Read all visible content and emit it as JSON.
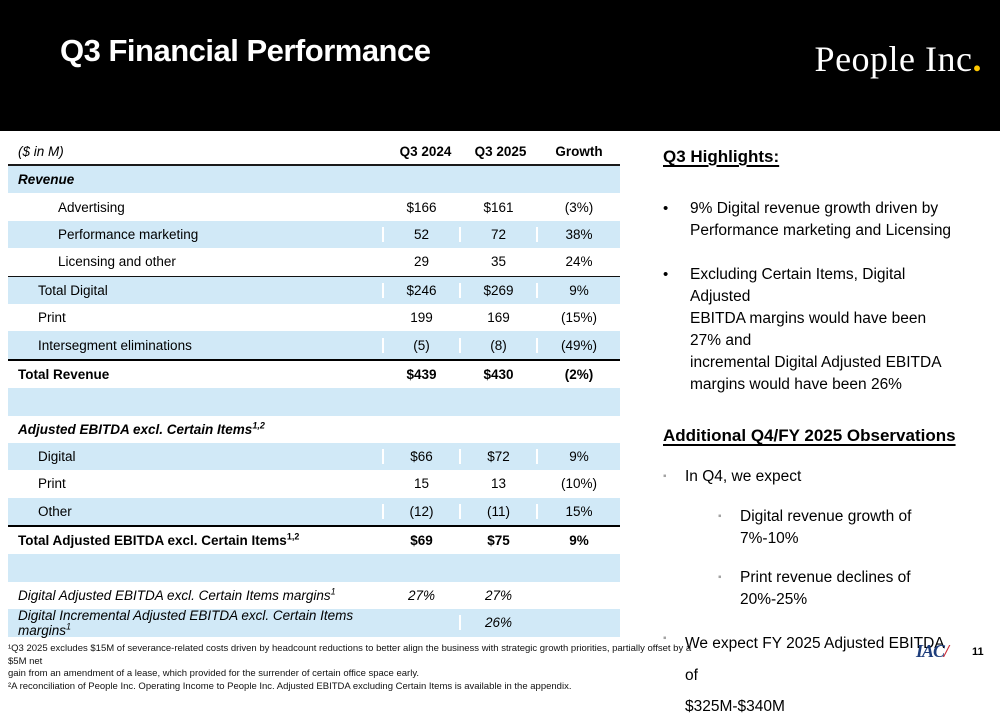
{
  "header": {
    "title": "Q3 Financial Performance",
    "logo_text": "People Inc",
    "logo_dot": "."
  },
  "icons": {
    "round_bullet": "•",
    "square_bullet": "▪"
  },
  "colors": {
    "band_black": "#000000",
    "stripe_blue": "#d1e9f7",
    "logo_dot_yellow": "#ffc800",
    "iac_navy": "#1e3d7b",
    "iac_red": "#cc2a36"
  },
  "table": {
    "columns": {
      "label": "($ in M)",
      "c1": "Q3 2024",
      "c2": "Q3 2025",
      "c3": "Growth"
    },
    "rows": [
      {
        "label": "Revenue"
      },
      {
        "label": "Advertising",
        "v1": "$166",
        "v2": "$161",
        "g": "(3%)"
      },
      {
        "label": "Performance marketing",
        "v1": "52",
        "v2": "72",
        "g": "38%"
      },
      {
        "label": "Licensing and other",
        "v1": "29",
        "v2": "35",
        "g": "24%"
      },
      {
        "label": "Total Digital",
        "v1": "$246",
        "v2": "$269",
        "g": "9%"
      },
      {
        "label": "Print",
        "v1": "199",
        "v2": "169",
        "g": "(15%)"
      },
      {
        "label": "Intersegment eliminations",
        "v1": "(5)",
        "v2": "(8)",
        "g": "(49%)"
      },
      {
        "label": "Total Revenue",
        "v1": "$439",
        "v2": "$430",
        "g": "(2%)"
      },
      {
        "label": ""
      },
      {
        "label": "Adjusted EBITDA excl. Certain Items",
        "sup": "1,2"
      },
      {
        "label": "Digital",
        "v1": "$66",
        "v2": "$72",
        "g": "9%"
      },
      {
        "label": "Print",
        "v1": "15",
        "v2": "13",
        "g": "(10%)"
      },
      {
        "label": "Other",
        "v1": "(12)",
        "v2": "(11)",
        "g": "15%"
      },
      {
        "label": "Total Adjusted EBITDA excl. Certain Items",
        "sup": "1,2",
        "v1": "$69",
        "v2": "$75",
        "g": "9%"
      },
      {
        "label": ""
      },
      {
        "label": "Digital Adjusted EBITDA excl. Certain Items margins",
        "sup": "1",
        "v1": "27%",
        "v2": "27%"
      },
      {
        "label": "Digital Incremental Adjusted EBITDA excl. Certain Items margins",
        "sup": "1",
        "v2": "26%"
      }
    ]
  },
  "highlights": {
    "title": "Q3 Highlights:",
    "bullets": [
      "9% Digital revenue growth driven by\nPerformance marketing and Licensing",
      "Excluding Certain Items, Digital Adjusted\nEBITDA margins would have been 27% and\nincremental Digital Adjusted EBITDA\nmargins would have been 26%"
    ]
  },
  "observations": {
    "title": "Additional Q4/FY 2025 Observations",
    "items": [
      {
        "text": "In Q4, we expect"
      },
      {
        "text": "Digital revenue growth of 7%-10%"
      },
      {
        "text": "Print revenue declines of 20%-25%"
      },
      {
        "text": "We expect FY 2025 Adjusted EBITDA of\n$325M-$340M"
      }
    ]
  },
  "footer": {
    "footnote1": "¹Q3 2025 excludes $15M of severance-related costs driven by headcount reductions to better align the business with strategic growth priorities, partially offset by a $5M net\ngain from an amendment of a lease, which provided for the surrender of certain office space early.",
    "footnote2": "²A reconciliation of People Inc. Operating Income to People Inc. Adjusted EBITDA excluding Certain Items is available in the appendix.",
    "brand": "IAC",
    "brand_slash": "/",
    "page": "11"
  }
}
